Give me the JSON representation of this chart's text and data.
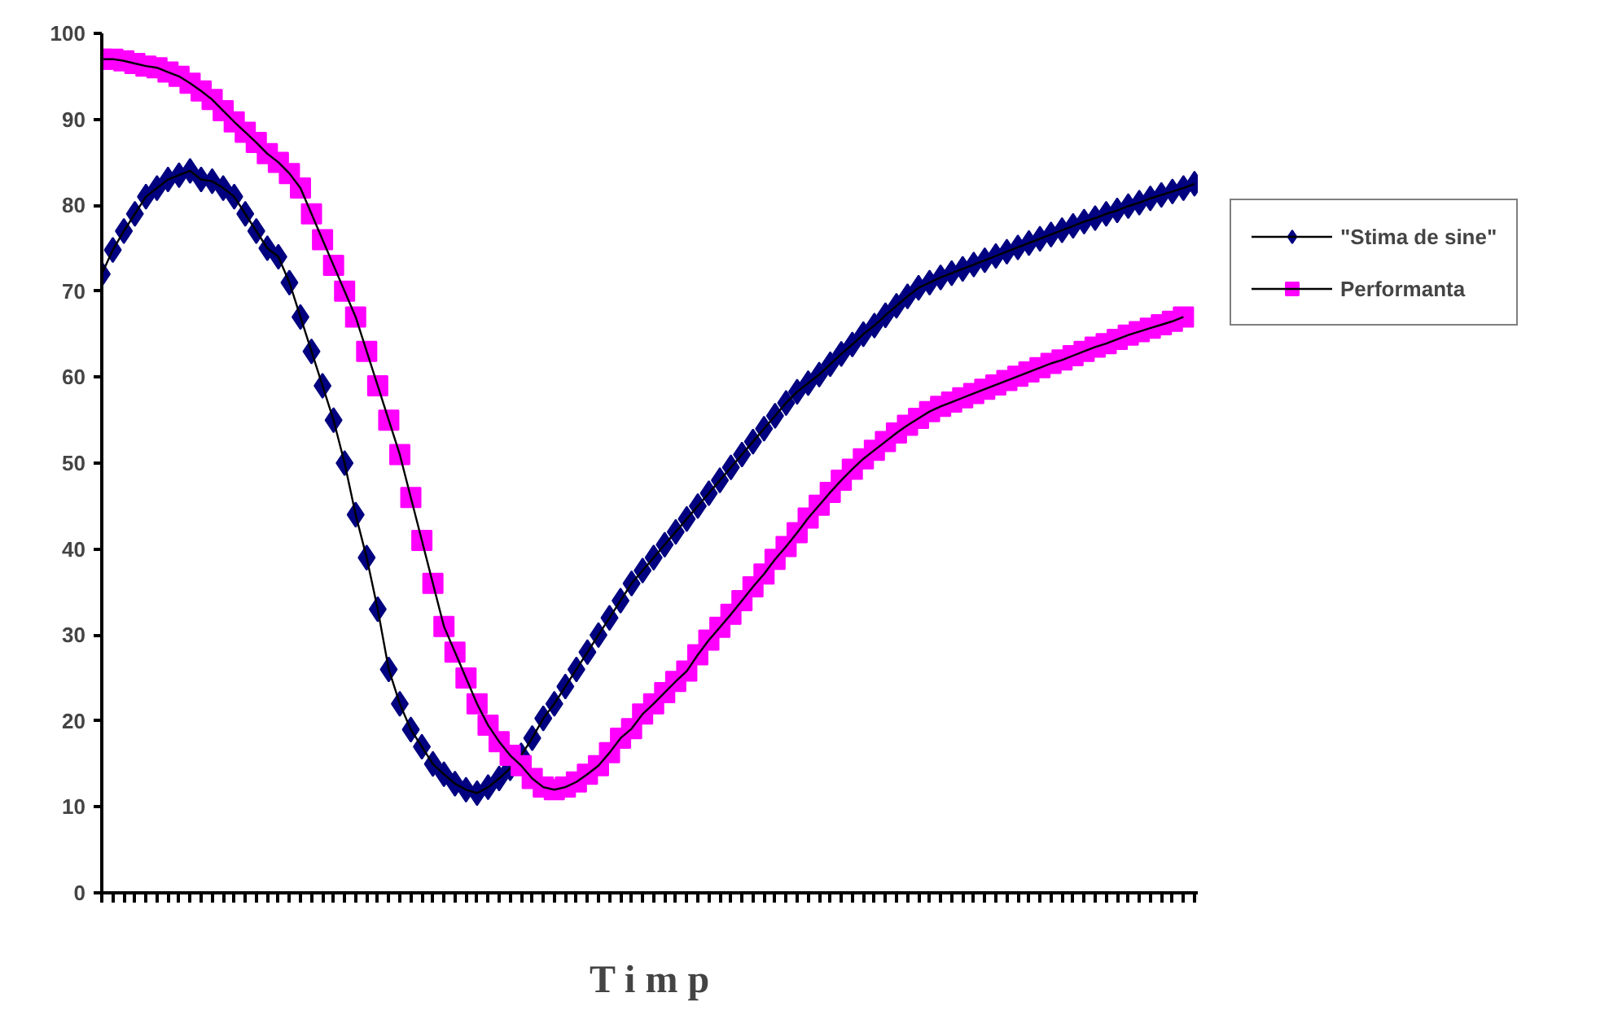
{
  "chart_data": {
    "type": "line",
    "xlabel": "T i m p",
    "categories": [
      null,
      null,
      null,
      null,
      null,
      null,
      null,
      null,
      null,
      null,
      null,
      null,
      null,
      null,
      null,
      null,
      null,
      null,
      null,
      null,
      null,
      null,
      null,
      null,
      null,
      null,
      null,
      null,
      null,
      null,
      null,
      null,
      null,
      null,
      null,
      null,
      null,
      null,
      null,
      null,
      null,
      null,
      null,
      null,
      null,
      null,
      null,
      null,
      null,
      null,
      null,
      null,
      null,
      null,
      null,
      null,
      null,
      null,
      null,
      null,
      null,
      null,
      null,
      null,
      null,
      null,
      null,
      null,
      null,
      null,
      null,
      null,
      null,
      null,
      null,
      null,
      null,
      null,
      null,
      null,
      null,
      null,
      null,
      null,
      null,
      null,
      null,
      null,
      null,
      null,
      null,
      null,
      null,
      null,
      null,
      null,
      null,
      null,
      null,
      null
    ],
    "series": [
      {
        "name": "\"Stima de sine\"",
        "color": "#000080",
        "marker": "diamond",
        "values": [
          72,
          74.8,
          77,
          79,
          81,
          82,
          83,
          83.5,
          84,
          83,
          82.8,
          82,
          81,
          79,
          77,
          75,
          74,
          71,
          67,
          63,
          59,
          55,
          50,
          44,
          39,
          33,
          26,
          22,
          19,
          17,
          15,
          13.8,
          12.7,
          12,
          11.6,
          12.3,
          13.3,
          14.5,
          16,
          18,
          20.3,
          22,
          24,
          26,
          28,
          30,
          32,
          34,
          36,
          37.5,
          39,
          40.5,
          42,
          43.5,
          45,
          46.5,
          48,
          49.5,
          51,
          52.5,
          54,
          55.5,
          57,
          58.3,
          59.3,
          60.3,
          61.5,
          62.7,
          63.8,
          65,
          66,
          67.2,
          68.3,
          69.4,
          70.4,
          71,
          71.6,
          72.1,
          72.6,
          73.1,
          73.6,
          74.1,
          74.6,
          75.1,
          75.6,
          76.1,
          76.6,
          77.1,
          77.6,
          78.1,
          78.5,
          79,
          79.4,
          79.9,
          80.3,
          80.8,
          81.2,
          81.6,
          82,
          82.5
        ]
      },
      {
        "name": "Performanta",
        "color": "#ff00ff",
        "marker": "square",
        "values": [
          97,
          97,
          96.8,
          96.5,
          96.2,
          96,
          95.5,
          95,
          94.2,
          93.3,
          92.3,
          91,
          89.7,
          88.5,
          87.3,
          86,
          85,
          83.7,
          82,
          79,
          76,
          73,
          70,
          67,
          63,
          59,
          55,
          51,
          46,
          41,
          36,
          31,
          28,
          25,
          22,
          19.5,
          17.6,
          16,
          14.8,
          13.3,
          12.3,
          12,
          12.3,
          12.9,
          13.8,
          14.8,
          16.3,
          18,
          19.1,
          20.8,
          22,
          23.3,
          24.6,
          25.8,
          27.7,
          29.4,
          30.9,
          32.4,
          34,
          35.6,
          37.1,
          38.8,
          40.3,
          41.9,
          43.6,
          45.1,
          46.6,
          48,
          49.3,
          50.5,
          51.5,
          52.5,
          53.5,
          54.4,
          55.2,
          56,
          56.6,
          57.1,
          57.6,
          58.1,
          58.6,
          59.1,
          59.6,
          60.1,
          60.6,
          61.1,
          61.6,
          62,
          62.5,
          63,
          63.5,
          63.9,
          64.4,
          64.9,
          65.3,
          65.7,
          66.1,
          66.5,
          67,
          null
        ]
      }
    ],
    "ylim": [
      0,
      100
    ],
    "yticks": [
      0,
      10,
      20,
      30,
      40,
      50,
      60,
      70,
      80,
      90,
      100
    ],
    "legend": "right",
    "tick_labels": "y"
  }
}
